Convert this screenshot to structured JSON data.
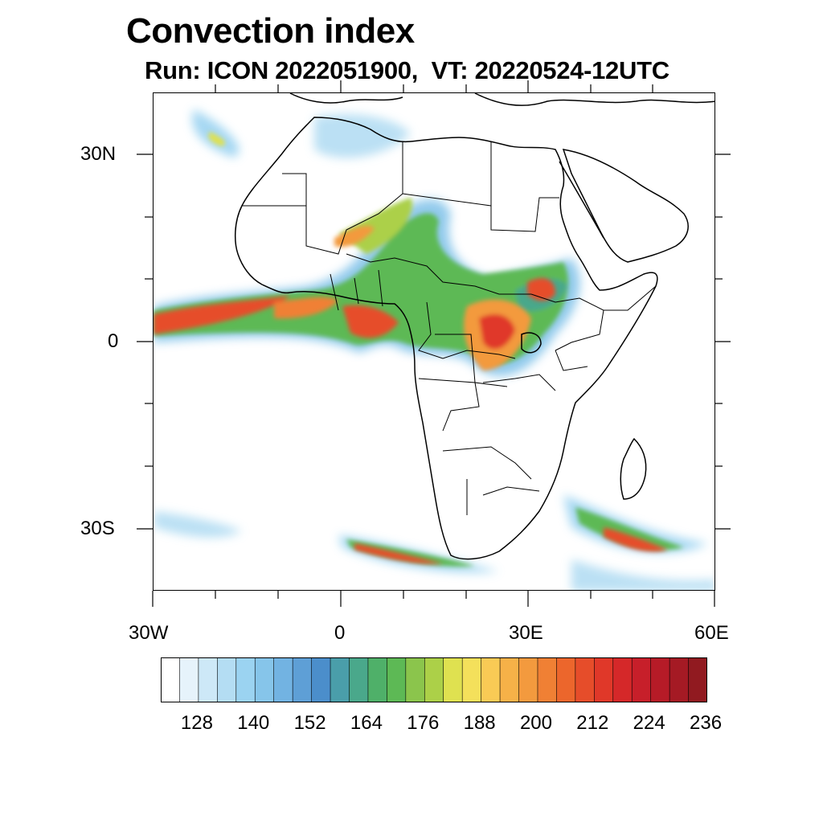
{
  "title": "Convection index",
  "subtitle": "Run: ICON 2022051900,  VT: 20220524-12UTC",
  "map": {
    "region": "Africa",
    "lon_range": [
      -30,
      60
    ],
    "lat_range": [
      -40,
      40
    ],
    "lon_tick_labels": [
      "30W",
      "0",
      "30E",
      "60E"
    ],
    "lat_tick_labels": [
      "30N",
      "0",
      "30S"
    ],
    "field": "convection index"
  },
  "colorbar": {
    "labels": [
      "128",
      "140",
      "152",
      "164",
      "176",
      "188",
      "200",
      "212",
      "224",
      "236"
    ],
    "colors": [
      "#ffffff",
      "#e6f3fb",
      "#cde8f7",
      "#b4ddf3",
      "#9bd3f1",
      "#86c5ea",
      "#72b3e2",
      "#5e9fd6",
      "#4b8ecb",
      "#4a9eaa",
      "#4aa88b",
      "#4fb069",
      "#5db955",
      "#8bc54c",
      "#acd048",
      "#dfe150",
      "#f4e05b",
      "#f9ca55",
      "#f6b148",
      "#f39a3e",
      "#f08034",
      "#ec662c",
      "#e64d2a",
      "#e03829",
      "#d52829",
      "#c71f2a",
      "#b61b27",
      "#a51a24",
      "#911a20"
    ]
  }
}
